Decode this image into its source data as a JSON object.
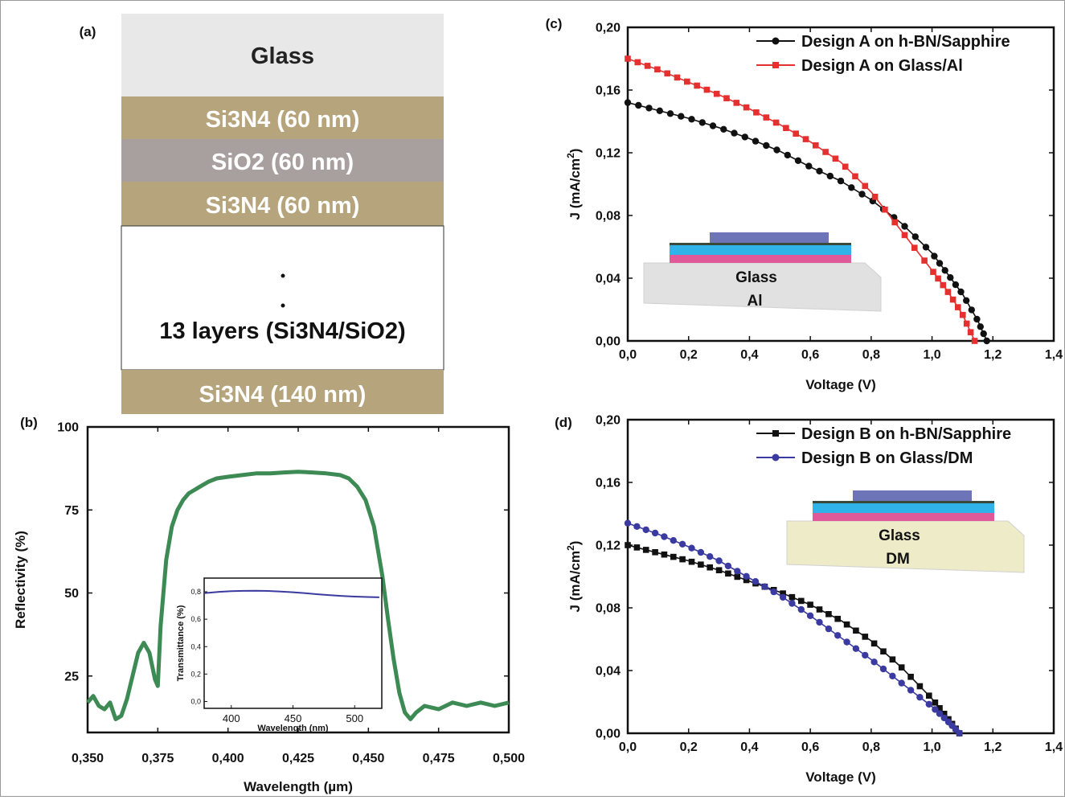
{
  "panel_a": {
    "label": "(a)",
    "layers": [
      {
        "text": "Glass",
        "color": "#e8e8e8",
        "text_color": "#222222"
      },
      {
        "text": "Si3N4 (60 nm)",
        "color": "#b5a47c",
        "text_color": "#ffffff"
      },
      {
        "text": "SiO2 (60 nm)",
        "color": "#a8a09e",
        "text_color": "#ffffff"
      },
      {
        "text": "Si3N4 (60 nm)",
        "color": "#b5a47c",
        "text_color": "#ffffff"
      },
      {
        "text": "13 layers (Si3N4/SiO2)",
        "color": "#ffffff",
        "text_color": "#111111"
      },
      {
        "text": "Si3N4 (140 nm)",
        "color": "#b5a47c",
        "text_color": "#ffffff"
      }
    ]
  },
  "chart_data": [
    {
      "id": "b",
      "panel_label": "(b)",
      "type": "line",
      "xlabel": "Wavelength (µm)",
      "ylabel": "Reflectivity (%)",
      "xlim": [
        0.35,
        0.5
      ],
      "ylim": [
        8,
        100
      ],
      "xticks": [
        "0,350",
        "0,375",
        "0,400",
        "0,425",
        "0,450",
        "0,475",
        "0,500"
      ],
      "xtick_values": [
        0.35,
        0.375,
        0.4,
        0.425,
        0.45,
        0.475,
        0.5
      ],
      "yticks": [
        "25",
        "50",
        "75",
        "100"
      ],
      "ytick_values": [
        25,
        50,
        75,
        100
      ],
      "series": [
        {
          "color": "#3d8a55",
          "x": [
            0.35,
            0.352,
            0.354,
            0.356,
            0.358,
            0.36,
            0.362,
            0.364,
            0.366,
            0.368,
            0.37,
            0.372,
            0.374,
            0.375,
            0.376,
            0.378,
            0.38,
            0.382,
            0.384,
            0.386,
            0.388,
            0.39,
            0.393,
            0.396,
            0.4,
            0.405,
            0.41,
            0.415,
            0.42,
            0.425,
            0.43,
            0.435,
            0.44,
            0.443,
            0.446,
            0.449,
            0.452,
            0.455,
            0.457,
            0.459,
            0.461,
            0.463,
            0.465,
            0.467,
            0.47,
            0.475,
            0.48,
            0.485,
            0.49,
            0.495,
            0.5
          ],
          "y": [
            17,
            19,
            16,
            15,
            17,
            12,
            13,
            18,
            25,
            32,
            35,
            32,
            24,
            22,
            40,
            60,
            70,
            75,
            78,
            80,
            81,
            82,
            83.5,
            84.5,
            85,
            85.5,
            86,
            86,
            86.3,
            86.5,
            86.3,
            86,
            85.5,
            84.5,
            82,
            78,
            70,
            55,
            42,
            30,
            20,
            14,
            12,
            14,
            16,
            15,
            17,
            16,
            17,
            16,
            17
          ]
        }
      ],
      "inset": {
        "type": "line",
        "xlabel": "Wavelength (nm)",
        "ylabel": "Transmittance (%)",
        "xlim": [
          378,
          522
        ],
        "ylim": [
          -0.05,
          0.9
        ],
        "xticks": [
          "400",
          "450",
          "500"
        ],
        "xtick_values": [
          400,
          450,
          500
        ],
        "yticks": [
          "0,0",
          "0,2",
          "0,4",
          "0,6",
          "0,8"
        ],
        "ytick_values": [
          0.0,
          0.2,
          0.4,
          0.6,
          0.8
        ],
        "series": [
          {
            "color": "#3a3aa0",
            "x": [
              378,
              390,
              400,
              410,
              420,
              430,
              440,
              450,
              460,
              470,
              480,
              490,
              500,
              510,
              520
            ],
            "y": [
              0.79,
              0.8,
              0.805,
              0.807,
              0.808,
              0.806,
              0.802,
              0.797,
              0.79,
              0.782,
              0.775,
              0.77,
              0.765,
              0.762,
              0.76
            ]
          }
        ]
      }
    },
    {
      "id": "c",
      "panel_label": "(c)",
      "type": "line",
      "xlabel": "Voltage (V)",
      "ylabel_main": "J (mA/cm",
      "ylabel_sup": "2",
      "ylabel_end": ")",
      "xlim": [
        0,
        1.4
      ],
      "ylim": [
        0,
        0.2
      ],
      "xticks": [
        "0,0",
        "0,2",
        "0,4",
        "0,6",
        "0,8",
        "1,0",
        "1,2",
        "1,4"
      ],
      "xtick_values": [
        0,
        0.2,
        0.4,
        0.6,
        0.8,
        1.0,
        1.2,
        1.4
      ],
      "yticks": [
        "0,00",
        "0,04",
        "0,08",
        "0,12",
        "0,16",
        "0,20"
      ],
      "ytick_values": [
        0,
        0.04,
        0.08,
        0.12,
        0.16,
        0.2
      ],
      "legend_position": "top-right",
      "series": [
        {
          "name": "Design A on h-BN/Sapphire",
          "color": "#111111",
          "marker": "circle",
          "x": [
            0,
            0.1,
            0.2,
            0.3,
            0.4,
            0.5,
            0.6,
            0.7,
            0.8,
            0.9,
            1.0,
            1.05,
            1.1,
            1.15,
            1.18
          ],
          "y": [
            0.152,
            0.147,
            0.142,
            0.136,
            0.129,
            0.121,
            0.111,
            0.102,
            0.09,
            0.075,
            0.056,
            0.043,
            0.03,
            0.013,
            0.0
          ]
        },
        {
          "name": "Design A on Glass/Al",
          "color": "#e53030",
          "marker": "square",
          "x": [
            0,
            0.1,
            0.2,
            0.3,
            0.4,
            0.5,
            0.6,
            0.7,
            0.8,
            0.9,
            1.0,
            1.05,
            1.1,
            1.14
          ],
          "y": [
            0.18,
            0.173,
            0.165,
            0.157,
            0.148,
            0.138,
            0.127,
            0.114,
            0.095,
            0.07,
            0.045,
            0.032,
            0.017,
            0.0
          ]
        }
      ],
      "inset_labels": [
        "Glass",
        "Al"
      ]
    },
    {
      "id": "d",
      "panel_label": "(d)",
      "type": "line",
      "xlabel": "Voltage (V)",
      "ylabel_main": "J (mA/cm",
      "ylabel_sup": "2",
      "ylabel_end": ")",
      "xlim": [
        0,
        1.4
      ],
      "ylim": [
        0,
        0.2
      ],
      "xticks": [
        "0,0",
        "0,2",
        "0,4",
        "0,6",
        "0,8",
        "1,0",
        "1,2",
        "1,4"
      ],
      "xtick_values": [
        0,
        0.2,
        0.4,
        0.6,
        0.8,
        1.0,
        1.2,
        1.4
      ],
      "yticks": [
        "0,00",
        "0,04",
        "0,08",
        "0,12",
        "0,16",
        "0,20"
      ],
      "ytick_values": [
        0,
        0.04,
        0.08,
        0.12,
        0.16,
        0.2
      ],
      "legend_position": "top-right",
      "series": [
        {
          "name": "Design B on h-BN/Sapphire",
          "color": "#111111",
          "marker": "square",
          "x": [
            0,
            0.1,
            0.2,
            0.3,
            0.4,
            0.5,
            0.6,
            0.7,
            0.8,
            0.9,
            1.0,
            1.05,
            1.09
          ],
          "y": [
            0.12,
            0.115,
            0.11,
            0.104,
            0.097,
            0.09,
            0.082,
            0.072,
            0.059,
            0.042,
            0.022,
            0.01,
            0.0
          ]
        },
        {
          "name": "Design B on Glass/DM",
          "color": "#3a3aa0",
          "marker": "circle",
          "x": [
            0,
            0.1,
            0.2,
            0.3,
            0.4,
            0.5,
            0.6,
            0.7,
            0.8,
            0.9,
            1.0,
            1.05,
            1.09
          ],
          "y": [
            0.134,
            0.127,
            0.119,
            0.11,
            0.099,
            0.088,
            0.075,
            0.061,
            0.047,
            0.032,
            0.017,
            0.008,
            0.0
          ]
        }
      ],
      "inset_labels": [
        "Glass",
        "DM"
      ]
    }
  ]
}
